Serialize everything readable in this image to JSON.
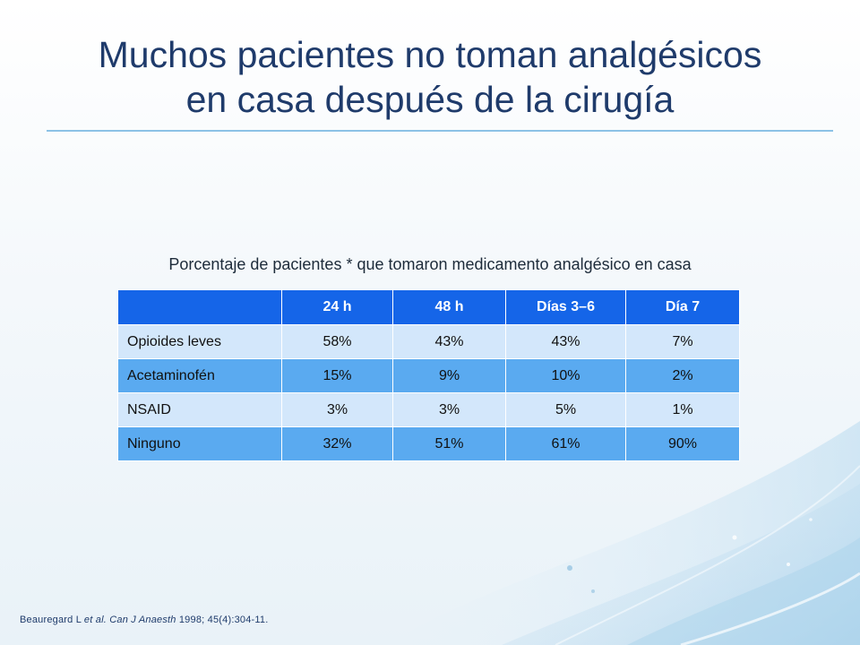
{
  "title": {
    "line1": "Muchos pacientes no toman analgésicos",
    "line2": "en casa después de la cirugía"
  },
  "table": {
    "caption": "Porcentaje de pacientes * que tomaron medicamento analgésico en casa",
    "header": [
      "",
      "24 h",
      "48 h",
      "Días 3–6",
      "Día 7"
    ],
    "rows": [
      {
        "label": "Opioides leves",
        "values": [
          "58%",
          "43%",
          "43%",
          "7%"
        ]
      },
      {
        "label": "Acetaminofén",
        "values": [
          "15%",
          "9%",
          "10%",
          "2%"
        ]
      },
      {
        "label": "NSAID",
        "values": [
          "3%",
          "3%",
          "5%",
          "1%"
        ]
      },
      {
        "label": "Ninguno",
        "values": [
          "32%",
          "51%",
          "61%",
          "90%"
        ]
      }
    ]
  },
  "citation": {
    "authors": "Beauregard L ",
    "etal": "et al.",
    "journal": "Can J Anaesth",
    "details": " 1998; 45(4):304-11."
  },
  "colors": {
    "title": "#1f3b6b",
    "header_bg": "#1565e8",
    "row_light": "#d3e7fb",
    "row_dark": "#5aaaf0",
    "rule": "#8cc2e6"
  }
}
